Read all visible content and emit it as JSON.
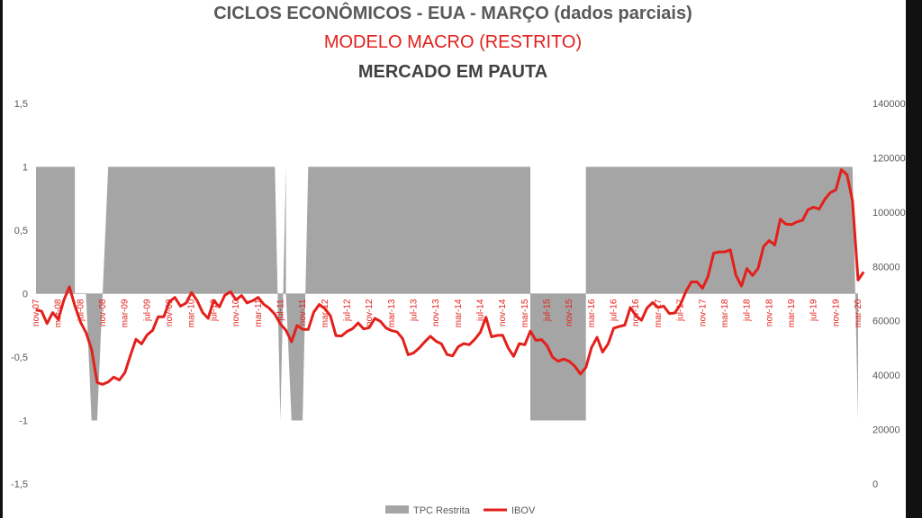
{
  "header": {
    "title": "CICLOS ECONÔMICOS - EUA - MARÇO (dados parciais)",
    "subtitle": "MODELO MACRO (RESTRITO)",
    "brand": "MERCADO EM PAUTA"
  },
  "chart_data": {
    "type": "area",
    "title": "CICLOS ECONÔMICOS - EUA - MARÇO (dados parciais)",
    "subtitle": "MODELO MACRO (RESTRITO)",
    "y_left": {
      "ticks": [
        "1,5",
        "1",
        "0,5",
        "0",
        "-0,5",
        "-1",
        "-1,5"
      ],
      "ylim": [
        -1.5,
        1.5
      ]
    },
    "y_right": {
      "ticks": [
        "140000",
        "120000",
        "100000",
        "80000",
        "60000",
        "40000",
        "20000",
        "0"
      ],
      "ylim": [
        0,
        140000
      ]
    },
    "x_start": "nov-07",
    "x_end": "mar-20",
    "x_ticks": [
      "nov-07",
      "mar-08",
      "jul-08",
      "nov-08",
      "mar-09",
      "jul-09",
      "nov-09",
      "mar-10",
      "jul-10",
      "nov-10",
      "mar-11",
      "jul-11",
      "nov-11",
      "mar-12",
      "jul-12",
      "nov-12",
      "mar-13",
      "jul-13",
      "nov-13",
      "mar-14",
      "jul-14",
      "nov-14",
      "mar-15",
      "jul-15",
      "nov-15",
      "mar-16",
      "jul-16",
      "nov-16",
      "mar-17",
      "jul-17",
      "nov-17",
      "mar-18",
      "jul-18",
      "nov-18",
      "mar-19",
      "jul-19",
      "nov-19",
      "mar-20"
    ],
    "legend_position": "bottom",
    "series": [
      {
        "name": "TPC Restrita",
        "type": "area",
        "color": "#a5a5a5",
        "axis": "left",
        "points": [
          [
            "nov-07",
            1
          ],
          [
            "jun-08",
            1
          ],
          [
            "jun-08",
            0
          ],
          [
            "jul-08",
            0
          ],
          [
            "aug-08",
            0
          ],
          [
            "sep-08",
            -1
          ],
          [
            "oct-08",
            -1
          ],
          [
            "nov-08",
            0
          ],
          [
            "dec-08",
            1
          ],
          [
            "jun-11",
            1
          ],
          [
            "jul-11",
            -1
          ],
          [
            "aug-11",
            1
          ],
          [
            "aug-11",
            0
          ],
          [
            "sep-11",
            -1
          ],
          [
            "nov-11",
            -1
          ],
          [
            "dec-11",
            1
          ],
          [
            "apr-15",
            1
          ],
          [
            "apr-15",
            -1
          ],
          [
            "feb-16",
            -1
          ],
          [
            "feb-16",
            1
          ],
          [
            "feb-20",
            1
          ],
          [
            "mar-20",
            -1
          ]
        ]
      },
      {
        "name": "IBOV",
        "type": "line",
        "color": "#e3201b",
        "axis": "right",
        "points": [
          [
            "nov-07",
            64000
          ],
          [
            "dec-07",
            63500
          ],
          [
            "jan-08",
            59000
          ],
          [
            "feb-08",
            63000
          ],
          [
            "mar-08",
            60500
          ],
          [
            "apr-08",
            67500
          ],
          [
            "may-08",
            72500
          ],
          [
            "jun-08",
            65500
          ],
          [
            "jul-08",
            59500
          ],
          [
            "aug-08",
            55700
          ],
          [
            "sep-08",
            49500
          ],
          [
            "oct-08",
            37300
          ],
          [
            "nov-08",
            36600
          ],
          [
            "dec-08",
            37500
          ],
          [
            "jan-09",
            39300
          ],
          [
            "feb-09",
            38200
          ],
          [
            "mar-09",
            40900
          ],
          [
            "apr-09",
            47300
          ],
          [
            "may-09",
            53200
          ],
          [
            "jun-09",
            51500
          ],
          [
            "jul-09",
            54800
          ],
          [
            "aug-09",
            56500
          ],
          [
            "sep-09",
            61500
          ],
          [
            "oct-09",
            61500
          ],
          [
            "nov-09",
            67000
          ],
          [
            "dec-09",
            68600
          ],
          [
            "jan-10",
            65400
          ],
          [
            "feb-10",
            66500
          ],
          [
            "mar-10",
            70400
          ],
          [
            "apr-10",
            67500
          ],
          [
            "may-10",
            63000
          ],
          [
            "jun-10",
            60900
          ],
          [
            "jul-10",
            67500
          ],
          [
            "aug-10",
            65100
          ],
          [
            "sep-10",
            69400
          ],
          [
            "oct-10",
            70700
          ],
          [
            "nov-10",
            67700
          ],
          [
            "dec-10",
            69300
          ],
          [
            "jan-11",
            66600
          ],
          [
            "feb-11",
            67400
          ],
          [
            "mar-11",
            68600
          ],
          [
            "apr-11",
            66100
          ],
          [
            "may-11",
            64600
          ],
          [
            "jun-11",
            62400
          ],
          [
            "jul-11",
            58800
          ],
          [
            "aug-11",
            56500
          ],
          [
            "sep-11",
            52300
          ],
          [
            "oct-11",
            58300
          ],
          [
            "nov-11",
            56900
          ],
          [
            "dec-11",
            56800
          ],
          [
            "jan-12",
            63100
          ],
          [
            "feb-12",
            66000
          ],
          [
            "mar-12",
            64500
          ],
          [
            "apr-12",
            61800
          ],
          [
            "may-12",
            54500
          ],
          [
            "jun-12",
            54400
          ],
          [
            "jul-12",
            56100
          ],
          [
            "aug-12",
            57100
          ],
          [
            "sep-12",
            59200
          ],
          [
            "oct-12",
            57000
          ],
          [
            "nov-12",
            57500
          ],
          [
            "dec-12",
            60900
          ],
          [
            "jan-13",
            59800
          ],
          [
            "feb-13",
            57400
          ],
          [
            "mar-13",
            56400
          ],
          [
            "apr-13",
            55900
          ],
          [
            "may-13",
            53500
          ],
          [
            "jun-13",
            47500
          ],
          [
            "jul-13",
            48200
          ],
          [
            "aug-13",
            50000
          ],
          [
            "sep-13",
            52300
          ],
          [
            "oct-13",
            54300
          ],
          [
            "nov-13",
            52500
          ],
          [
            "dec-13",
            51500
          ],
          [
            "jan-14",
            47600
          ],
          [
            "feb-14",
            47100
          ],
          [
            "mar-14",
            50400
          ],
          [
            "apr-14",
            51600
          ],
          [
            "may-14",
            51200
          ],
          [
            "jun-14",
            53200
          ],
          [
            "jul-14",
            55800
          ],
          [
            "aug-14",
            61300
          ],
          [
            "sep-14",
            54100
          ],
          [
            "oct-14",
            54600
          ],
          [
            "nov-14",
            54700
          ],
          [
            "dec-14",
            50000
          ],
          [
            "jan-15",
            46900
          ],
          [
            "feb-15",
            51600
          ],
          [
            "mar-15",
            51200
          ],
          [
            "apr-15",
            56200
          ],
          [
            "may-15",
            52800
          ],
          [
            "jun-15",
            53100
          ],
          [
            "jul-15",
            50900
          ],
          [
            "aug-15",
            46600
          ],
          [
            "sep-15",
            45100
          ],
          [
            "oct-15",
            45900
          ],
          [
            "nov-15",
            45100
          ],
          [
            "dec-15",
            43300
          ],
          [
            "jan-16",
            40400
          ],
          [
            "feb-16",
            42800
          ],
          [
            "mar-16",
            50100
          ],
          [
            "apr-16",
            53900
          ],
          [
            "may-16",
            48500
          ],
          [
            "jun-16",
            51500
          ],
          [
            "jul-16",
            57300
          ],
          [
            "aug-16",
            57900
          ],
          [
            "sep-16",
            58400
          ],
          [
            "oct-16",
            64900
          ],
          [
            "nov-16",
            61900
          ],
          [
            "dec-16",
            60200
          ],
          [
            "jan-17",
            64700
          ],
          [
            "feb-17",
            66700
          ],
          [
            "mar-17",
            64900
          ],
          [
            "apr-17",
            65400
          ],
          [
            "may-17",
            62700
          ],
          [
            "jun-17",
            62900
          ],
          [
            "jul-17",
            65900
          ],
          [
            "aug-17",
            70800
          ],
          [
            "sep-17",
            74300
          ],
          [
            "oct-17",
            74300
          ],
          [
            "nov-17",
            71970
          ],
          [
            "dec-17",
            76400
          ],
          [
            "jan-18",
            84900
          ],
          [
            "feb-18",
            85350
          ],
          [
            "mar-18",
            85350
          ],
          [
            "apr-18",
            86100
          ],
          [
            "may-18",
            76800
          ],
          [
            "jun-18",
            72800
          ],
          [
            "jul-18",
            79200
          ],
          [
            "aug-18",
            76700
          ],
          [
            "sep-18",
            79300
          ],
          [
            "oct-18",
            87400
          ],
          [
            "nov-18",
            89500
          ],
          [
            "dec-18",
            87900
          ],
          [
            "jan-19",
            97400
          ],
          [
            "feb-19",
            95600
          ],
          [
            "mar-19",
            95400
          ],
          [
            "apr-19",
            96400
          ],
          [
            "may-19",
            97000
          ],
          [
            "jun-19",
            100900
          ],
          [
            "jul-19",
            101800
          ],
          [
            "aug-19",
            101100
          ],
          [
            "sep-19",
            104700
          ],
          [
            "oct-19",
            107200
          ],
          [
            "nov-19",
            108200
          ],
          [
            "dec-19",
            115600
          ],
          [
            "jan-20",
            113800
          ],
          [
            "feb-20",
            104200
          ],
          [
            "mar-20",
            75000
          ],
          [
            "apr-20",
            78000
          ]
        ]
      }
    ]
  }
}
